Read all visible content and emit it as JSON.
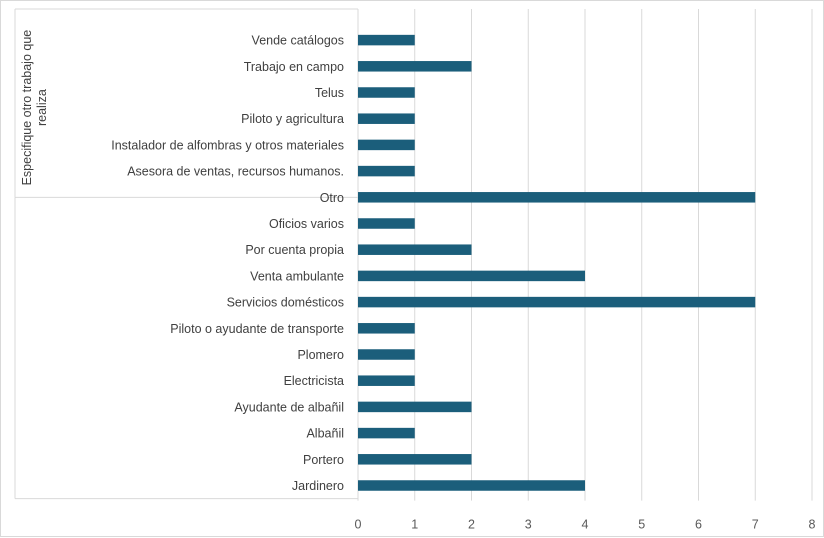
{
  "chart_data": {
    "type": "bar",
    "orientation": "horizontal",
    "group_label": "Especifique otro trabajo que realiza",
    "categories": [
      "Vende catálogos",
      "Trabajo en campo",
      "Telus",
      "Piloto y agricultura",
      "Instalador de alfombras y otros materiales",
      "Asesora de ventas, recursos humanos.",
      "Otro",
      "Oficios varios",
      "Por cuenta propia",
      "Venta ambulante",
      "Servicios domésticos",
      "Piloto o ayudante de transporte",
      "Plomero",
      "Electricista",
      "Ayudante de albañil",
      "Albañil",
      "Portero",
      "Jardinero"
    ],
    "values": [
      1,
      2,
      1,
      1,
      1,
      1,
      7,
      1,
      2,
      4,
      7,
      1,
      1,
      1,
      2,
      1,
      2,
      4
    ],
    "grouped_count": 6,
    "xlim": [
      0,
      8
    ],
    "xticks": [
      "0",
      "1",
      "2",
      "3",
      "4",
      "5",
      "6",
      "7",
      "8"
    ],
    "grid": "vertical",
    "legend": "none",
    "colors": {
      "bar": "#1b5e7b",
      "grid": "#d9d9d9",
      "text": "#404040"
    }
  }
}
